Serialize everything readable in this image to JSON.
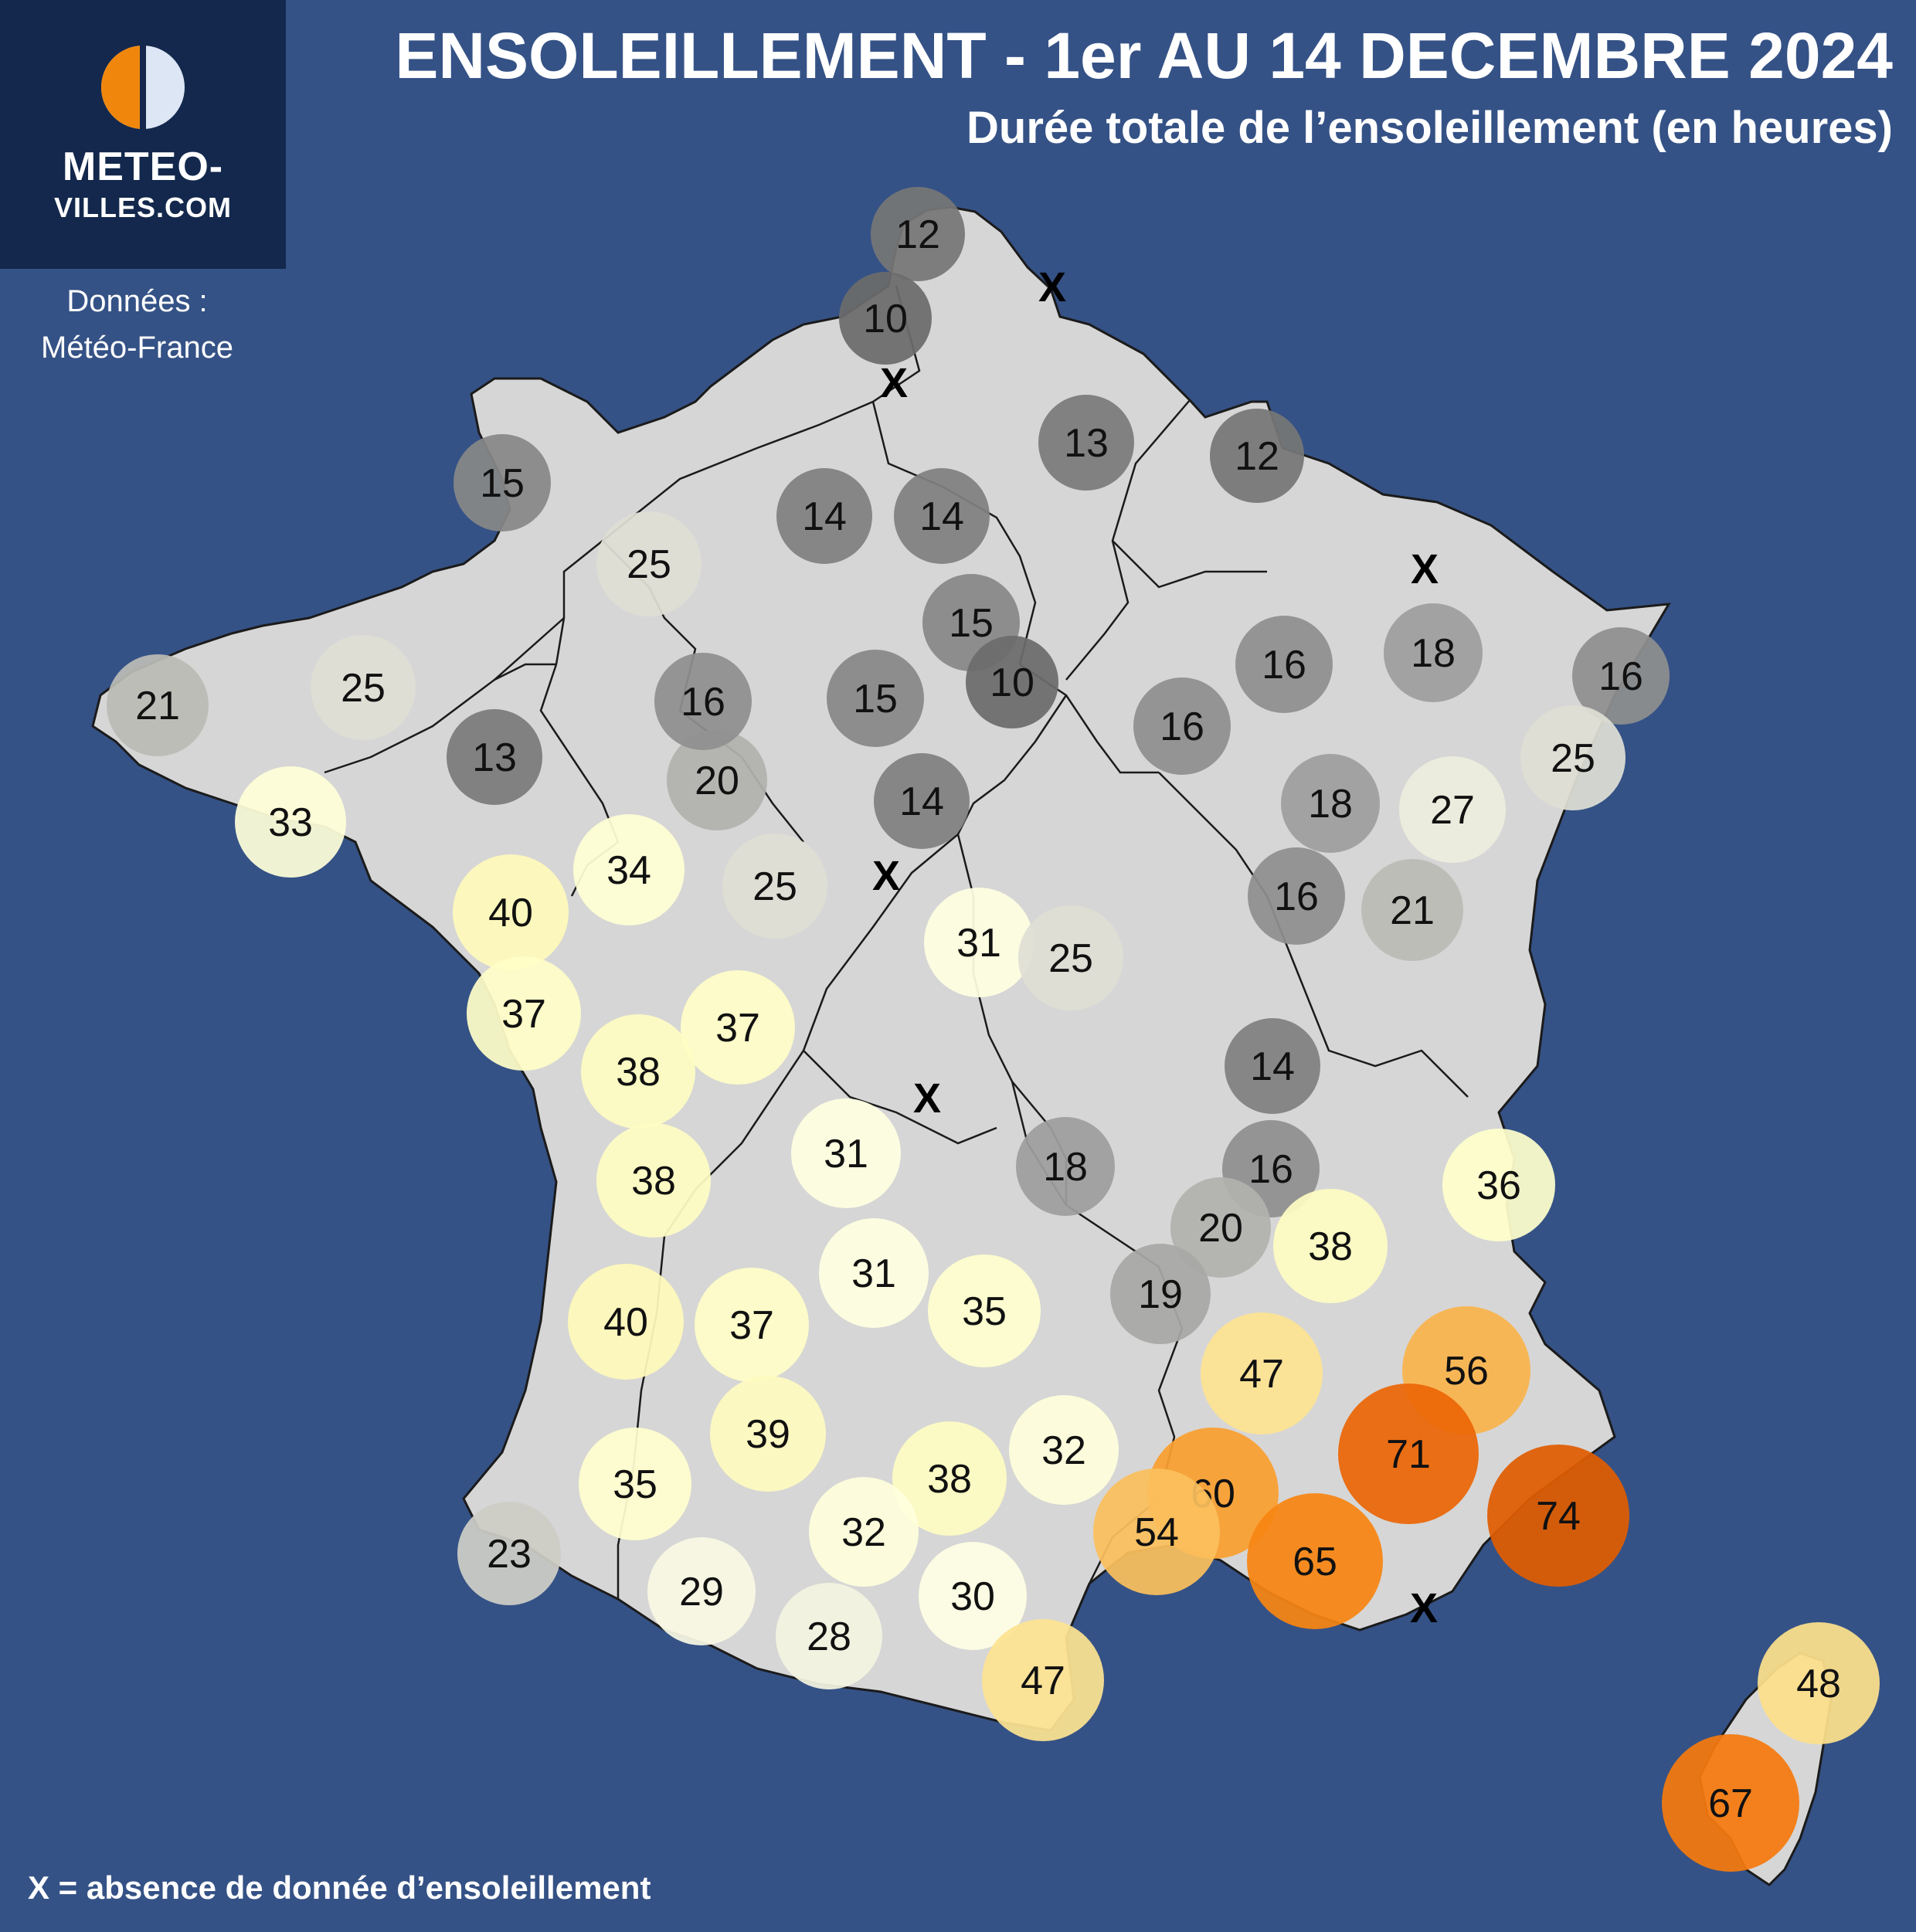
{
  "header": {
    "title": "ENSOLEILLEMENT - 1er AU 14 DECEMBRE 2024",
    "subtitle": "Durée totale de l’ensoleillement (en heures)"
  },
  "logo": {
    "line1": "METEO-",
    "line2": "VILLES.COM",
    "icon": "half-sun-half-moon-icon",
    "colors": {
      "sun": "#f0870c",
      "moon": "#dde6f5"
    }
  },
  "source": {
    "line1": "Données :",
    "line2": "Météo-France"
  },
  "footnote": "X = absence de donnée d’ensoleillement",
  "colors": {
    "background": "#355286",
    "land": "#d6d6d6",
    "border": "#1b1b1b"
  },
  "stations": [
    {
      "value": 12,
      "label": "12"
    },
    {
      "value": 10,
      "label": "10"
    },
    {
      "value": 13,
      "label": "13"
    },
    {
      "value": 12,
      "label": "12"
    },
    {
      "value": 15,
      "label": "15"
    },
    {
      "value": 14,
      "label": "14"
    },
    {
      "value": 14,
      "label": "14"
    },
    {
      "value": 25,
      "label": "25"
    },
    {
      "value": 15,
      "label": "15"
    },
    {
      "value": 10,
      "label": "10"
    },
    {
      "value": 15,
      "label": "15"
    },
    {
      "value": 16,
      "label": "16"
    },
    {
      "value": 18,
      "label": "18"
    },
    {
      "value": 16,
      "label": "16"
    },
    {
      "value": 16,
      "label": "16"
    },
    {
      "value": 21,
      "label": "21"
    },
    {
      "value": 25,
      "label": "25"
    },
    {
      "value": 13,
      "label": "13"
    },
    {
      "value": 20,
      "label": "20"
    },
    {
      "value": 14,
      "label": "14"
    },
    {
      "value": 16,
      "label": "16"
    },
    {
      "value": 25,
      "label": "25"
    },
    {
      "value": 18,
      "label": "18"
    },
    {
      "value": 27,
      "label": "27"
    },
    {
      "value": 33,
      "label": "33"
    },
    {
      "value": 34,
      "label": "34"
    },
    {
      "value": 40,
      "label": "40"
    },
    {
      "value": 25,
      "label": "25"
    },
    {
      "value": 16,
      "label": "16"
    },
    {
      "value": 21,
      "label": "21"
    },
    {
      "value": 31,
      "label": "31"
    },
    {
      "value": 25,
      "label": "25"
    },
    {
      "value": 37,
      "label": "37"
    },
    {
      "value": 37,
      "label": "37"
    },
    {
      "value": 38,
      "label": "38"
    },
    {
      "value": 14,
      "label": "14"
    },
    {
      "value": 31,
      "label": "31"
    },
    {
      "value": 38,
      "label": "38"
    },
    {
      "value": 18,
      "label": "18"
    },
    {
      "value": 16,
      "label": "16"
    },
    {
      "value": 36,
      "label": "36"
    },
    {
      "value": 20,
      "label": "20"
    },
    {
      "value": 38,
      "label": "38"
    },
    {
      "value": 31,
      "label": "31"
    },
    {
      "value": 40,
      "label": "40"
    },
    {
      "value": 37,
      "label": "37"
    },
    {
      "value": 35,
      "label": "35"
    },
    {
      "value": 19,
      "label": "19"
    },
    {
      "value": 47,
      "label": "47"
    },
    {
      "value": 56,
      "label": "56"
    },
    {
      "value": 71,
      "label": "71"
    },
    {
      "value": 39,
      "label": "39"
    },
    {
      "value": 32,
      "label": "32"
    },
    {
      "value": 38,
      "label": "38"
    },
    {
      "value": 35,
      "label": "35"
    },
    {
      "value": 60,
      "label": "60"
    },
    {
      "value": 74,
      "label": "74"
    },
    {
      "value": 54,
      "label": "54"
    },
    {
      "value": 32,
      "label": "32"
    },
    {
      "value": 23,
      "label": "23"
    },
    {
      "value": 65,
      "label": "65"
    },
    {
      "value": 29,
      "label": "29"
    },
    {
      "value": 30,
      "label": "30"
    },
    {
      "value": 28,
      "label": "28"
    },
    {
      "value": 47,
      "label": "47"
    },
    {
      "value": 48,
      "label": "48"
    },
    {
      "value": 67,
      "label": "67"
    }
  ],
  "missing_marker": "X",
  "missing_count": 6
}
